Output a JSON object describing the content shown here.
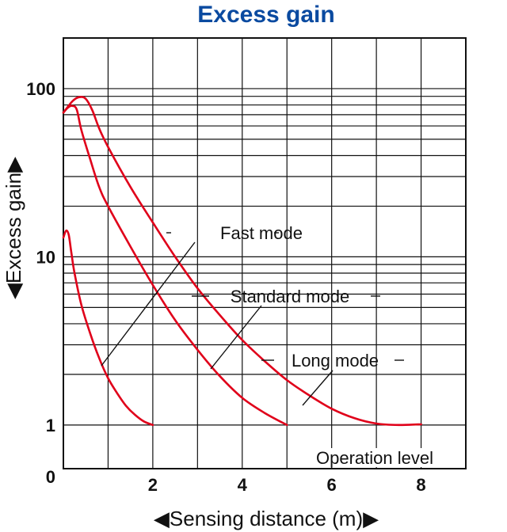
{
  "chart_data": {
    "type": "line",
    "title": "Excess gain",
    "xlabel": "◀Sensing distance (m)▶",
    "ylabel": "◀Excess gain▶",
    "x_ticks": [
      "2",
      "4",
      "6",
      "8"
    ],
    "y_ticks": [
      "100",
      "10",
      "1"
    ],
    "origin_label": "0",
    "xlim": [
      0,
      9
    ],
    "ylim": [
      0.55,
      200
    ],
    "y_scale": "log",
    "grid": true,
    "reference_label": "Operation level",
    "series": [
      {
        "name": "Fast mode",
        "color": "#e0001a",
        "x": [
          0.0,
          0.06,
          0.12,
          0.18,
          0.25,
          0.4,
          0.6,
          0.8,
          1.0,
          1.2,
          1.4,
          1.6,
          1.8,
          2.0
        ],
        "y": [
          13,
          14.3,
          13.5,
          10.5,
          8.0,
          5.2,
          3.5,
          2.5,
          1.9,
          1.55,
          1.3,
          1.15,
          1.05,
          1.0
        ]
      },
      {
        "name": "Standard mode",
        "color": "#e0001a",
        "x": [
          0.0,
          0.1,
          0.2,
          0.3,
          0.4,
          0.6,
          0.8,
          1.0,
          1.5,
          2.0,
          2.5,
          3.0,
          3.5,
          4.0,
          4.5,
          5.0
        ],
        "y": [
          72,
          77,
          79,
          75,
          57,
          38,
          26,
          20,
          11.5,
          6.8,
          4.2,
          2.8,
          1.95,
          1.45,
          1.18,
          1.0
        ]
      },
      {
        "name": "Long mode",
        "color": "#e0001a",
        "x": [
          0.0,
          0.2,
          0.35,
          0.5,
          0.65,
          0.8,
          1.0,
          1.5,
          2.0,
          2.5,
          3.0,
          3.5,
          4.0,
          4.5,
          5.0,
          5.5,
          6.0,
          6.5,
          7.0,
          7.5,
          8.0
        ],
        "y": [
          72,
          84,
          89,
          87,
          74,
          58,
          45,
          26,
          16,
          10,
          6.5,
          4.5,
          3.2,
          2.4,
          1.85,
          1.5,
          1.25,
          1.1,
          1.02,
          1.0,
          1.01
        ]
      }
    ]
  }
}
